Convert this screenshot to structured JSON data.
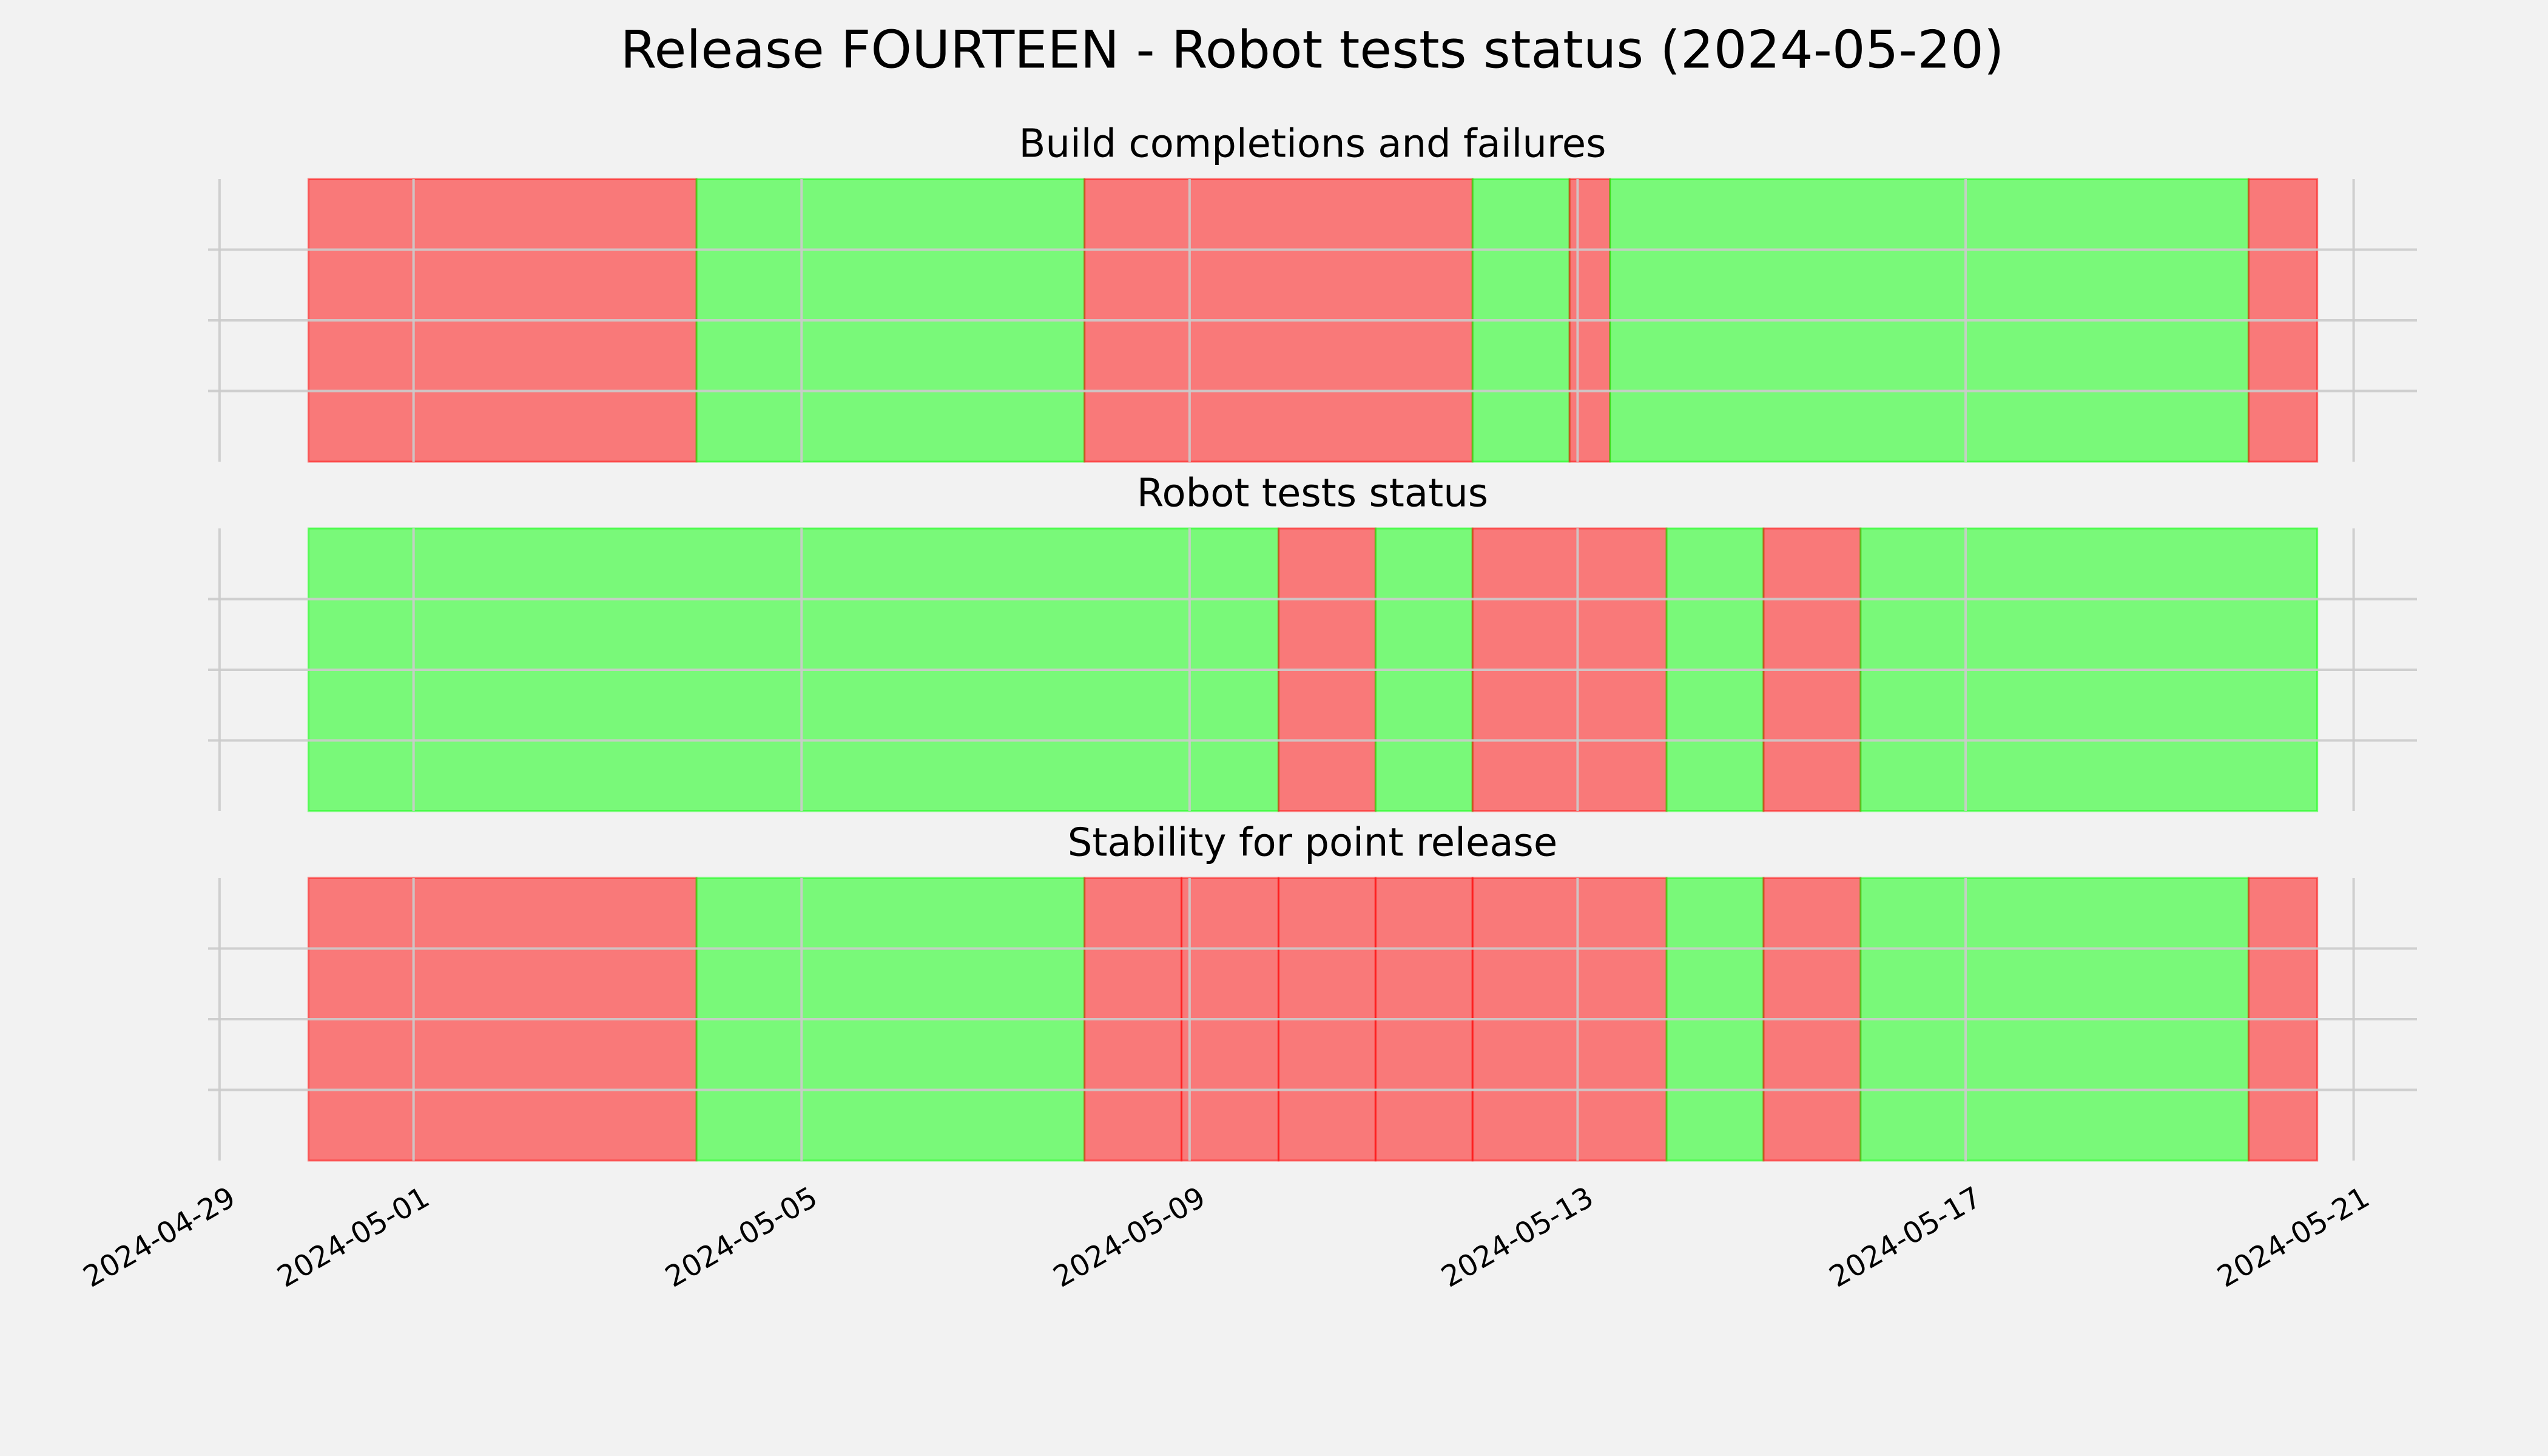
{
  "title": "Release FOURTEEN - Robot tests status (2024-05-20)",
  "chart_data": [
    {
      "type": "timeline",
      "title": "Build completions and failures",
      "alpha": 0.5,
      "grid": true,
      "xlim": [
        "2024-04-28T21:10",
        "2024-05-21T15:40"
      ],
      "xticks": [
        "2024-04-29",
        "2024-05-01",
        "2024-05-05",
        "2024-05-09",
        "2024-05-13",
        "2024-05-17",
        "2024-05-21"
      ],
      "ylim": [
        0,
        1
      ],
      "yticks": [
        0.25,
        0.5,
        0.75
      ],
      "segments": [
        {
          "start": "2024-04-29T22:00",
          "end": "2024-05-03T22:00",
          "color": "#ff0000"
        },
        {
          "start": "2024-05-03T22:00",
          "end": "2024-05-07T22:00",
          "color": "#00ff00"
        },
        {
          "start": "2024-05-07T22:00",
          "end": "2024-05-11T22:00",
          "color": "#ff0000"
        },
        {
          "start": "2024-05-11T22:00",
          "end": "2024-05-12T22:00",
          "color": "#00ff00"
        },
        {
          "start": "2024-05-12T22:00",
          "end": "2024-05-13T08:00",
          "color": "#ff0000"
        },
        {
          "start": "2024-05-13T08:00",
          "end": "2024-05-19T22:00",
          "color": "#00ff00"
        },
        {
          "start": "2024-05-19T22:00",
          "end": "2024-05-20T15:00",
          "color": "#ff0000"
        }
      ]
    },
    {
      "type": "timeline",
      "title": "Robot tests status",
      "alpha": 0.5,
      "grid": true,
      "xlim": [
        "2024-04-28T21:10",
        "2024-05-21T15:40"
      ],
      "xticks": [
        "2024-04-29",
        "2024-05-01",
        "2024-05-05",
        "2024-05-09",
        "2024-05-13",
        "2024-05-17",
        "2024-05-21"
      ],
      "ylim": [
        0,
        1
      ],
      "yticks": [
        0.25,
        0.5,
        0.75
      ],
      "segments": [
        {
          "start": "2024-04-29T22:00",
          "end": "2024-05-09T22:00",
          "color": "#00ff00"
        },
        {
          "start": "2024-05-09T22:00",
          "end": "2024-05-10T22:00",
          "color": "#ff0000"
        },
        {
          "start": "2024-05-10T22:00",
          "end": "2024-05-11T22:00",
          "color": "#00ff00"
        },
        {
          "start": "2024-05-11T22:00",
          "end": "2024-05-13T22:00",
          "color": "#ff0000"
        },
        {
          "start": "2024-05-13T22:00",
          "end": "2024-05-14T22:00",
          "color": "#00ff00"
        },
        {
          "start": "2024-05-14T22:00",
          "end": "2024-05-15T22:00",
          "color": "#ff0000"
        },
        {
          "start": "2024-05-15T22:00",
          "end": "2024-05-20T15:00",
          "color": "#00ff00"
        }
      ]
    },
    {
      "type": "timeline",
      "title": "Stability for point release",
      "alpha": 0.5,
      "grid": true,
      "xlim": [
        "2024-04-28T21:10",
        "2024-05-21T15:40"
      ],
      "xticks": [
        "2024-04-29",
        "2024-05-01",
        "2024-05-05",
        "2024-05-09",
        "2024-05-13",
        "2024-05-17",
        "2024-05-21"
      ],
      "ylim": [
        0,
        1
      ],
      "yticks": [
        0.25,
        0.5,
        0.75
      ],
      "segments": [
        {
          "start": "2024-04-29T22:00",
          "end": "2024-05-03T22:00",
          "color": "#ff0000"
        },
        {
          "start": "2024-05-03T22:00",
          "end": "2024-05-07T22:00",
          "color": "#00ff00"
        },
        {
          "start": "2024-05-07T22:00",
          "end": "2024-05-08T22:00",
          "color": "#ff0000"
        },
        {
          "start": "2024-05-08T22:00",
          "end": "2024-05-09T22:00",
          "color": "#ff0000"
        },
        {
          "start": "2024-05-09T22:00",
          "end": "2024-05-10T22:00",
          "color": "#ff0000"
        },
        {
          "start": "2024-05-10T22:00",
          "end": "2024-05-11T22:00",
          "color": "#ff0000"
        },
        {
          "start": "2024-05-11T22:00",
          "end": "2024-05-13T22:00",
          "color": "#ff0000"
        },
        {
          "start": "2024-05-13T22:00",
          "end": "2024-05-14T22:00",
          "color": "#00ff00"
        },
        {
          "start": "2024-05-14T22:00",
          "end": "2024-05-15T22:00",
          "color": "#ff0000"
        },
        {
          "start": "2024-05-15T22:00",
          "end": "2024-05-19T22:00",
          "color": "#00ff00"
        },
        {
          "start": "2024-05-19T22:00",
          "end": "2024-05-20T15:00",
          "color": "#ff0000"
        }
      ]
    }
  ]
}
